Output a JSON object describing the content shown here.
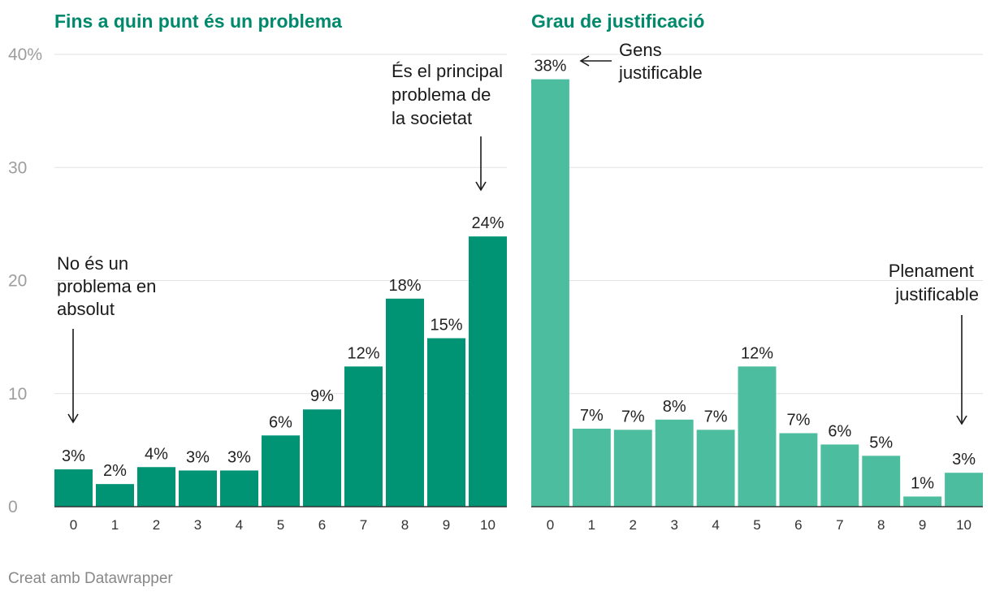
{
  "colors": {
    "title": "#00896b",
    "panel1_bar": "#009475",
    "panel2_bar": "#4cbe9f"
  },
  "footer": "Creat amb Datawrapper",
  "chart_data": [
    {
      "type": "bar",
      "title": "Fins a quin punt és un problema",
      "categories": [
        "0",
        "1",
        "2",
        "3",
        "4",
        "5",
        "6",
        "7",
        "8",
        "9",
        "10"
      ],
      "values": [
        3.3,
        2.0,
        3.5,
        3.2,
        3.2,
        6.3,
        8.6,
        12.4,
        18.4,
        14.9,
        23.9
      ],
      "value_labels": [
        "3%",
        "2%",
        "4%",
        "3%",
        "3%",
        "6%",
        "9%",
        "12%",
        "18%",
        "15%",
        "24%"
      ],
      "ylim": [
        0,
        40
      ],
      "yticks": [
        0,
        10,
        20,
        30,
        40
      ],
      "ytick_labels": [
        "0",
        "10",
        "20",
        "30",
        "40%"
      ],
      "annotations": [
        {
          "lines": [
            "No és un",
            "problema en",
            "absolut"
          ],
          "target": "0"
        },
        {
          "lines": [
            "És el principal",
            "problema de",
            "la societat"
          ],
          "target": "10"
        }
      ]
    },
    {
      "type": "bar",
      "title": "Grau de justificació",
      "categories": [
        "0",
        "1",
        "2",
        "3",
        "4",
        "5",
        "6",
        "7",
        "8",
        "9",
        "10"
      ],
      "values": [
        37.8,
        6.9,
        6.8,
        7.7,
        6.8,
        12.4,
        6.5,
        5.5,
        4.5,
        0.9,
        3.0
      ],
      "value_labels": [
        "38%",
        "7%",
        "7%",
        "8%",
        "7%",
        "12%",
        "7%",
        "6%",
        "5%",
        "1%",
        "3%"
      ],
      "ylim": [
        0,
        40
      ],
      "yticks": [
        0,
        10,
        20,
        30,
        40
      ],
      "annotations": [
        {
          "lines": [
            "Gens",
            "justificable"
          ],
          "target": "0"
        },
        {
          "lines": [
            "Plenament",
            "justificable"
          ],
          "target": "10"
        }
      ]
    }
  ]
}
